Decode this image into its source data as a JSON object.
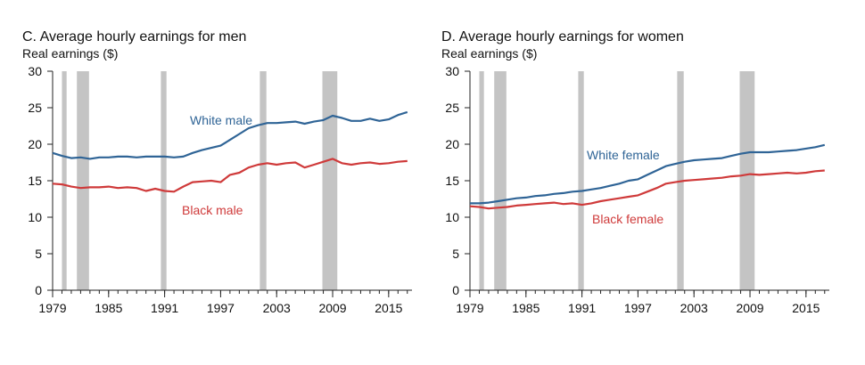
{
  "chart_data": [
    {
      "type": "line",
      "title": "C. Average hourly earnings for men",
      "ylabel": "Real earnings ($)",
      "xlabel": "",
      "xlim": [
        1979,
        2017.5
      ],
      "ylim": [
        0,
        30
      ],
      "yticks": [
        "0",
        "5",
        "10",
        "15",
        "20",
        "25",
        "30"
      ],
      "xticks": [
        "1979",
        "1985",
        "1991",
        "1997",
        "2003",
        "2009",
        "2015"
      ],
      "recessions": [
        [
          1980.0,
          1980.5
        ],
        [
          1981.6,
          1982.9
        ],
        [
          1990.6,
          1991.2
        ],
        [
          2001.2,
          2001.9
        ],
        [
          2007.9,
          2009.5
        ]
      ],
      "series": [
        {
          "name": "White male",
          "color": "#2f6496",
          "x": [
            1979.0,
            1980.0,
            1981.0,
            1982.0,
            1983.0,
            1984.0,
            1985.0,
            1986.0,
            1987.0,
            1988.0,
            1989.0,
            1990.0,
            1991.0,
            1992.0,
            1993.0,
            1994.0,
            1995.0,
            1996.0,
            1997.0,
            1998.0,
            1999.0,
            2000.0,
            2001.0,
            2002.0,
            2003.0,
            2004.0,
            2005.0,
            2006.0,
            2007.0,
            2008.0,
            2009.0,
            2010.0,
            2011.0,
            2012.0,
            2013.0,
            2014.0,
            2015.0,
            2016.0,
            2017.0
          ],
          "y": [
            18.8,
            18.4,
            18.1,
            18.2,
            18.0,
            18.2,
            18.2,
            18.3,
            18.3,
            18.2,
            18.3,
            18.3,
            18.3,
            18.2,
            18.3,
            18.8,
            19.2,
            19.5,
            19.8,
            20.6,
            21.4,
            22.2,
            22.6,
            22.9,
            22.9,
            23.0,
            23.1,
            22.8,
            23.1,
            23.3,
            23.9,
            23.6,
            23.2,
            23.2,
            23.5,
            23.2,
            23.4,
            24.0,
            24.4
          ],
          "label_text": "White male"
        },
        {
          "name": "Black male",
          "color": "#cf3a3a",
          "x": [
            1979.0,
            1980.0,
            1981.0,
            1982.0,
            1983.0,
            1984.0,
            1985.0,
            1986.0,
            1987.0,
            1988.0,
            1989.0,
            1990.0,
            1991.0,
            1992.0,
            1993.0,
            1994.0,
            1995.0,
            1996.0,
            1997.0,
            1998.0,
            1999.0,
            2000.0,
            2001.0,
            2002.0,
            2003.0,
            2004.0,
            2005.0,
            2006.0,
            2007.0,
            2008.0,
            2009.0,
            2010.0,
            2011.0,
            2012.0,
            2013.0,
            2014.0,
            2015.0,
            2016.0,
            2017.0
          ],
          "y": [
            14.6,
            14.5,
            14.2,
            14.0,
            14.1,
            14.1,
            14.2,
            14.0,
            14.1,
            14.0,
            13.6,
            13.9,
            13.6,
            13.5,
            14.2,
            14.8,
            14.9,
            15.0,
            14.8,
            15.8,
            16.1,
            16.8,
            17.2,
            17.4,
            17.2,
            17.4,
            17.5,
            16.8,
            17.2,
            17.6,
            18.0,
            17.4,
            17.2,
            17.4,
            17.5,
            17.3,
            17.4,
            17.6,
            17.7
          ],
          "label_text": "Black male"
        }
      ]
    },
    {
      "type": "line",
      "title": "D. Average hourly earnings for women",
      "ylabel": "Real earnings ($)",
      "xlabel": "",
      "xlim": [
        1979,
        2017.5
      ],
      "ylim": [
        0,
        30
      ],
      "yticks": [
        "0",
        "5",
        "10",
        "15",
        "20",
        "25",
        "30"
      ],
      "xticks": [
        "1979",
        "1985",
        "1991",
        "1997",
        "2003",
        "2009",
        "2015"
      ],
      "recessions": [
        [
          1980.0,
          1980.5
        ],
        [
          1981.6,
          1982.9
        ],
        [
          1990.6,
          1991.2
        ],
        [
          2001.2,
          2001.9
        ],
        [
          2007.9,
          2009.5
        ]
      ],
      "series": [
        {
          "name": "White female",
          "color": "#2f6496",
          "x": [
            1979.0,
            1980.0,
            1981.0,
            1982.0,
            1983.0,
            1984.0,
            1985.0,
            1986.0,
            1987.0,
            1988.0,
            1989.0,
            1990.0,
            1991.0,
            1992.0,
            1993.0,
            1994.0,
            1995.0,
            1996.0,
            1997.0,
            1998.0,
            1999.0,
            2000.0,
            2001.0,
            2002.0,
            2003.0,
            2004.0,
            2005.0,
            2006.0,
            2007.0,
            2008.0,
            2009.0,
            2010.0,
            2011.0,
            2012.0,
            2013.0,
            2014.0,
            2015.0,
            2016.0,
            2017.0
          ],
          "y": [
            11.9,
            11.9,
            12.0,
            12.2,
            12.4,
            12.6,
            12.7,
            12.9,
            13.0,
            13.2,
            13.3,
            13.5,
            13.6,
            13.8,
            14.0,
            14.3,
            14.6,
            15.0,
            15.2,
            15.8,
            16.4,
            17.0,
            17.3,
            17.6,
            17.8,
            17.9,
            18.0,
            18.1,
            18.4,
            18.7,
            18.9,
            18.9,
            18.9,
            19.0,
            19.1,
            19.2,
            19.4,
            19.6,
            19.9
          ],
          "label_text": "White female"
        },
        {
          "name": "Black female",
          "color": "#cf3a3a",
          "x": [
            1979.0,
            1980.0,
            1981.0,
            1982.0,
            1983.0,
            1984.0,
            1985.0,
            1986.0,
            1987.0,
            1988.0,
            1989.0,
            1990.0,
            1991.0,
            1992.0,
            1993.0,
            1994.0,
            1995.0,
            1996.0,
            1997.0,
            1998.0,
            1999.0,
            2000.0,
            2001.0,
            2002.0,
            2003.0,
            2004.0,
            2005.0,
            2006.0,
            2007.0,
            2008.0,
            2009.0,
            2010.0,
            2011.0,
            2012.0,
            2013.0,
            2014.0,
            2015.0,
            2016.0,
            2017.0
          ],
          "y": [
            11.5,
            11.4,
            11.2,
            11.3,
            11.4,
            11.6,
            11.7,
            11.8,
            11.9,
            12.0,
            11.8,
            11.9,
            11.7,
            11.9,
            12.2,
            12.4,
            12.6,
            12.8,
            13.0,
            13.5,
            14.0,
            14.6,
            14.8,
            15.0,
            15.1,
            15.2,
            15.3,
            15.4,
            15.6,
            15.7,
            15.9,
            15.8,
            15.9,
            16.0,
            16.1,
            16.0,
            16.1,
            16.3,
            16.4
          ],
          "label_text": "Black female"
        }
      ]
    }
  ]
}
